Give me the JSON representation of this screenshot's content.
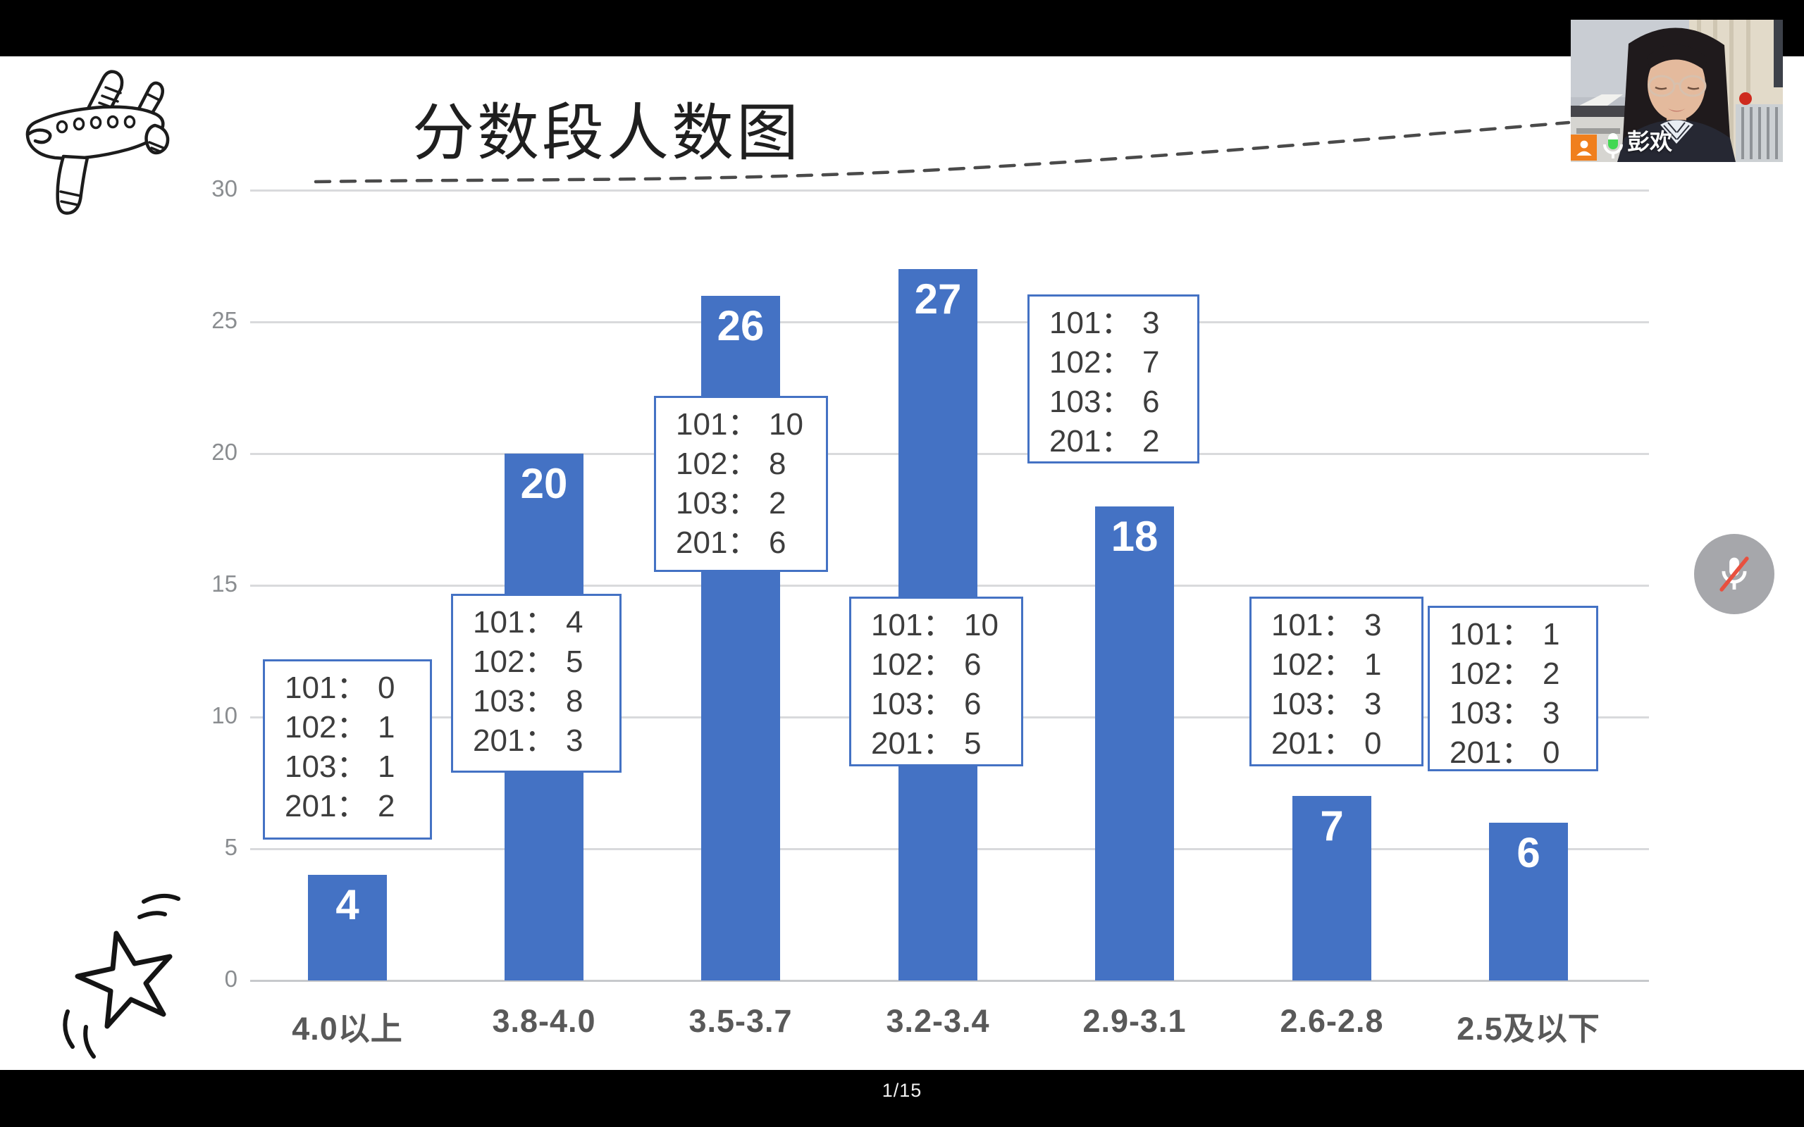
{
  "chart_data": {
    "type": "bar",
    "title": "分数段人数图",
    "categories": [
      "4.0以上",
      "3.8-4.0",
      "3.5-3.7",
      "3.2-3.4",
      "2.9-3.1",
      "2.6-2.8",
      "2.5及以下"
    ],
    "values": [
      4,
      20,
      26,
      27,
      18,
      7,
      6
    ],
    "xlabel": "",
    "ylabel": "",
    "ylim": [
      0,
      30
    ],
    "yticks": [
      0,
      5,
      10,
      15,
      20,
      25,
      30
    ],
    "grid": true,
    "legend": "none",
    "bar_color": "#4472c4",
    "callout_border_color": "#4472c4",
    "callout_separator": "：",
    "callouts": [
      {
        "category": "4.0以上",
        "entries": [
          [
            "101",
            0
          ],
          [
            "102",
            1
          ],
          [
            "103",
            1
          ],
          [
            "201",
            2
          ]
        ]
      },
      {
        "category": "3.8-4.0",
        "entries": [
          [
            "101",
            4
          ],
          [
            "102",
            5
          ],
          [
            "103",
            8
          ],
          [
            "201",
            3
          ]
        ]
      },
      {
        "category": "3.5-3.7",
        "entries": [
          [
            "101",
            10
          ],
          [
            "102",
            8
          ],
          [
            "103",
            2
          ],
          [
            "201",
            6
          ]
        ]
      },
      {
        "category": "3.2-3.4",
        "entries": [
          [
            "101",
            10
          ],
          [
            "102",
            6
          ],
          [
            "103",
            6
          ],
          [
            "201",
            5
          ]
        ]
      },
      {
        "category": "2.9-3.1",
        "entries": [
          [
            "101",
            3
          ],
          [
            "102",
            7
          ],
          [
            "103",
            6
          ],
          [
            "201",
            2
          ]
        ]
      },
      {
        "category": "2.6-2.8",
        "entries": [
          [
            "101",
            3
          ],
          [
            "102",
            1
          ],
          [
            "103",
            3
          ],
          [
            "201",
            0
          ]
        ]
      },
      {
        "category": "2.5及以下",
        "entries": [
          [
            "101",
            1
          ],
          [
            "102",
            2
          ],
          [
            "103",
            3
          ],
          [
            "201",
            0
          ]
        ]
      }
    ]
  },
  "webcam": {
    "participant_name": "彭欢",
    "avatar_icon": "participant-avatar-icon",
    "mic_icon": "mic-on-icon"
  },
  "controls": {
    "mic_button": {
      "icon": "mic-muted-icon",
      "state": "muted"
    }
  },
  "decorations": {
    "airplane": "airplane-doodle-icon",
    "star": "star-doodle-icon",
    "trail": "dashed-trail-line"
  },
  "footer": {
    "page_indicator": "1/15"
  }
}
